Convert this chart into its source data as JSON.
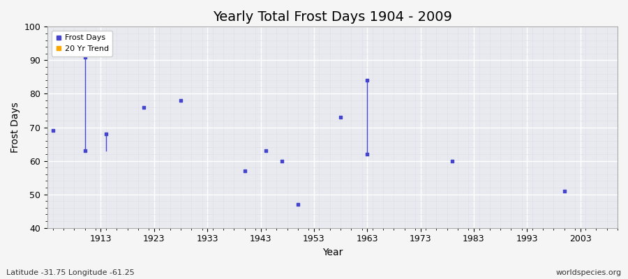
{
  "title": "Yearly Total Frost Days 1904 - 2009",
  "xlabel": "Year",
  "ylabel": "Frost Days",
  "xlim": [
    1903,
    2010
  ],
  "ylim": [
    40,
    100
  ],
  "xticks": [
    1913,
    1923,
    1933,
    1943,
    1953,
    1963,
    1973,
    1983,
    1993,
    2003
  ],
  "yticks": [
    40,
    50,
    60,
    70,
    80,
    90,
    100
  ],
  "plot_bg_color": "#e8eaf0",
  "fig_bg_color": "#f5f5f5",
  "grid_major_color": "#ffffff",
  "grid_minor_color": "#e0e0e8",
  "frost_days_color": "#4444cc",
  "trend_color": "#ffa500",
  "frost_days": [
    [
      1904,
      69
    ],
    [
      1910,
      91
    ],
    [
      1910,
      63
    ],
    [
      1914,
      68
    ],
    [
      1921,
      76
    ],
    [
      1928,
      78
    ],
    [
      1940,
      57
    ],
    [
      1944,
      63
    ],
    [
      1947,
      60
    ],
    [
      1950,
      47
    ],
    [
      1958,
      73
    ],
    [
      1963,
      84
    ],
    [
      1963,
      62
    ],
    [
      1979,
      60
    ],
    [
      2000,
      51
    ]
  ],
  "line_segments": [
    {
      "x": [
        1910,
        1910
      ],
      "y": [
        91,
        63
      ]
    },
    {
      "x": [
        1914,
        1914
      ],
      "y": [
        68,
        63
      ]
    },
    {
      "x": [
        1963,
        1963
      ],
      "y": [
        84,
        62
      ]
    }
  ],
  "title_fontsize": 14,
  "label_fontsize": 10,
  "tick_fontsize": 9,
  "watermark_left": "Latitude -31.75 Longitude -61.25",
  "watermark_right": "worldspecies.org",
  "watermark_color": "#333333",
  "watermark_fontsize": 8
}
